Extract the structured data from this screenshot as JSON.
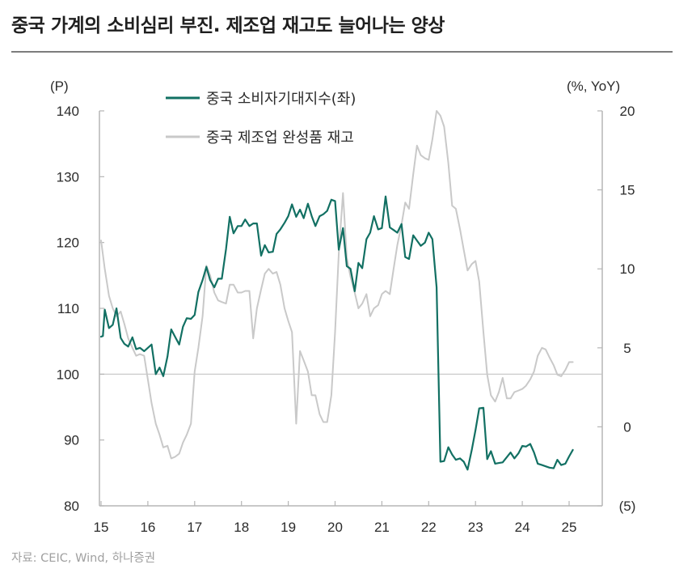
{
  "title": "중국 가계의 소비심리 부진. 제조업 재고도 늘어나는 양상",
  "source": "자료: CEIC, Wind, 하나증권",
  "colors": {
    "consumer": "#127063",
    "inventory": "#c9c9c9",
    "axis": "#b5b5b5",
    "baseline": "#c5c5c5"
  },
  "chart_data": {
    "type": "line",
    "title": "중국 가계의 소비심리 부진. 제조업 재고도 늘어나는 양상",
    "left_unit": "(P)",
    "right_unit": "(%, YoY)",
    "x_range": [
      2015,
      2025.25
    ],
    "y_left_range": [
      80,
      140
    ],
    "y_right_range": [
      -5,
      20
    ],
    "x_ticks": [
      {
        "value": 15,
        "label": "15"
      },
      {
        "value": 16,
        "label": "16"
      },
      {
        "value": 17,
        "label": "17"
      },
      {
        "value": 18,
        "label": "18"
      },
      {
        "value": 19,
        "label": "19"
      },
      {
        "value": 20,
        "label": "20"
      },
      {
        "value": 21,
        "label": "21"
      },
      {
        "value": 22,
        "label": "22"
      },
      {
        "value": 23,
        "label": "23"
      },
      {
        "value": 24,
        "label": "24"
      },
      {
        "value": 25,
        "label": "25"
      }
    ],
    "y_left_ticks": [
      {
        "value": 80,
        "label": "80"
      },
      {
        "value": 90,
        "label": "90"
      },
      {
        "value": 100,
        "label": "100"
      },
      {
        "value": 110,
        "label": "110"
      },
      {
        "value": 120,
        "label": "120"
      },
      {
        "value": 130,
        "label": "130"
      },
      {
        "value": 140,
        "label": "140"
      }
    ],
    "y_right_ticks": [
      {
        "value": -5,
        "label": "(5)"
      },
      {
        "value": 0,
        "label": "0"
      },
      {
        "value": 5,
        "label": "5"
      },
      {
        "value": 10,
        "label": "10"
      },
      {
        "value": 15,
        "label": "15"
      },
      {
        "value": 20,
        "label": "20"
      }
    ],
    "baseline_left": 100,
    "series": [
      {
        "name": "중국 소비자기대지수(좌)",
        "axis": "left",
        "color": "#127063",
        "points": [
          [
            15.0,
            105.7
          ],
          [
            15.04,
            105.8
          ],
          [
            15.08,
            109.8
          ],
          [
            15.17,
            107.0
          ],
          [
            15.25,
            107.5
          ],
          [
            15.33,
            110.0
          ],
          [
            15.42,
            105.5
          ],
          [
            15.5,
            104.6
          ],
          [
            15.58,
            104.2
          ],
          [
            15.67,
            105.6
          ],
          [
            15.75,
            103.8
          ],
          [
            15.83,
            104.0
          ],
          [
            15.92,
            103.5
          ],
          [
            16.0,
            104.0
          ],
          [
            16.08,
            104.5
          ],
          [
            16.17,
            100.0
          ],
          [
            16.25,
            101.0
          ],
          [
            16.33,
            99.7
          ],
          [
            16.42,
            102.7
          ],
          [
            16.5,
            106.8
          ],
          [
            16.58,
            105.7
          ],
          [
            16.67,
            104.5
          ],
          [
            16.75,
            107.2
          ],
          [
            16.83,
            108.5
          ],
          [
            16.92,
            108.4
          ],
          [
            17.0,
            109.0
          ],
          [
            17.08,
            112.5
          ],
          [
            17.17,
            114.3
          ],
          [
            17.25,
            116.3
          ],
          [
            17.33,
            114.3
          ],
          [
            17.42,
            113.2
          ],
          [
            17.5,
            114.5
          ],
          [
            17.58,
            114.5
          ],
          [
            17.67,
            119.0
          ],
          [
            17.75,
            123.9
          ],
          [
            17.83,
            121.4
          ],
          [
            17.92,
            122.5
          ],
          [
            18.0,
            122.5
          ],
          [
            18.08,
            123.5
          ],
          [
            18.17,
            122.5
          ],
          [
            18.25,
            122.9
          ],
          [
            18.33,
            122.9
          ],
          [
            18.42,
            118.0
          ],
          [
            18.5,
            119.6
          ],
          [
            18.58,
            118.5
          ],
          [
            18.67,
            118.6
          ],
          [
            18.75,
            121.3
          ],
          [
            18.83,
            122.0
          ],
          [
            18.92,
            123.0
          ],
          [
            19.0,
            124.0
          ],
          [
            19.08,
            125.8
          ],
          [
            19.17,
            123.9
          ],
          [
            19.25,
            125.0
          ],
          [
            19.33,
            123.7
          ],
          [
            19.42,
            125.9
          ],
          [
            19.5,
            124.0
          ],
          [
            19.58,
            122.5
          ],
          [
            19.67,
            124.0
          ],
          [
            19.75,
            124.3
          ],
          [
            19.83,
            124.8
          ],
          [
            19.92,
            126.5
          ],
          [
            20.0,
            126.3
          ],
          [
            20.08,
            118.9
          ],
          [
            20.17,
            122.2
          ],
          [
            20.25,
            116.4
          ],
          [
            20.33,
            116.0
          ],
          [
            20.42,
            112.6
          ],
          [
            20.5,
            116.9
          ],
          [
            20.58,
            116.1
          ],
          [
            20.67,
            120.5
          ],
          [
            20.75,
            121.5
          ],
          [
            20.83,
            124.0
          ],
          [
            20.92,
            122.0
          ],
          [
            21.0,
            122.2
          ],
          [
            21.08,
            127.0
          ],
          [
            21.17,
            122.3
          ],
          [
            21.25,
            121.9
          ],
          [
            21.33,
            121.5
          ],
          [
            21.42,
            122.8
          ],
          [
            21.5,
            117.8
          ],
          [
            21.58,
            117.5
          ],
          [
            21.67,
            121.1
          ],
          [
            21.75,
            120.3
          ],
          [
            21.83,
            119.5
          ],
          [
            21.92,
            120.0
          ],
          [
            22.0,
            121.5
          ],
          [
            22.08,
            120.5
          ],
          [
            22.17,
            113.2
          ],
          [
            22.25,
            86.7
          ],
          [
            22.33,
            86.8
          ],
          [
            22.42,
            88.9
          ],
          [
            22.5,
            87.8
          ],
          [
            22.58,
            87.0
          ],
          [
            22.67,
            87.2
          ],
          [
            22.75,
            86.7
          ],
          [
            22.83,
            85.5
          ],
          [
            22.92,
            88.5
          ],
          [
            23.0,
            91.5
          ],
          [
            23.08,
            94.8
          ],
          [
            23.17,
            94.9
          ],
          [
            23.25,
            87.1
          ],
          [
            23.33,
            88.3
          ],
          [
            23.42,
            86.4
          ],
          [
            23.5,
            86.5
          ],
          [
            23.58,
            86.6
          ],
          [
            23.67,
            87.4
          ],
          [
            23.75,
            88.1
          ],
          [
            23.83,
            87.2
          ],
          [
            23.92,
            88.0
          ],
          [
            24.0,
            89.1
          ],
          [
            24.08,
            89.0
          ],
          [
            24.17,
            89.4
          ],
          [
            24.25,
            88.1
          ],
          [
            24.33,
            86.4
          ],
          [
            24.42,
            86.2
          ],
          [
            24.5,
            86.0
          ],
          [
            24.58,
            85.8
          ],
          [
            24.67,
            85.7
          ],
          [
            24.75,
            87.0
          ],
          [
            24.83,
            86.2
          ],
          [
            24.92,
            86.4
          ],
          [
            25.0,
            87.5
          ],
          [
            25.08,
            88.5
          ]
        ]
      },
      {
        "name": "중국 제조업 완성품 재고",
        "axis": "right",
        "color": "#c9c9c9",
        "points": [
          [
            15.0,
            11.8
          ],
          [
            15.08,
            10.0
          ],
          [
            15.17,
            8.3
          ],
          [
            15.25,
            7.5
          ],
          [
            15.33,
            7.0
          ],
          [
            15.42,
            7.3
          ],
          [
            15.5,
            6.5
          ],
          [
            15.58,
            5.6
          ],
          [
            15.67,
            5.0
          ],
          [
            15.75,
            4.5
          ],
          [
            15.83,
            4.6
          ],
          [
            15.92,
            4.5
          ],
          [
            16.0,
            3.0
          ],
          [
            16.08,
            1.5
          ],
          [
            16.17,
            0.2
          ],
          [
            16.25,
            -0.5
          ],
          [
            16.33,
            -1.3
          ],
          [
            16.42,
            -1.2
          ],
          [
            16.5,
            -2.0
          ],
          [
            16.58,
            -1.9
          ],
          [
            16.67,
            -1.7
          ],
          [
            16.75,
            -1.0
          ],
          [
            16.83,
            -0.5
          ],
          [
            16.92,
            0.2
          ],
          [
            17.0,
            3.5
          ],
          [
            17.08,
            5.0
          ],
          [
            17.17,
            7.0
          ],
          [
            17.25,
            10.2
          ],
          [
            17.33,
            9.6
          ],
          [
            17.42,
            8.5
          ],
          [
            17.5,
            8.0
          ],
          [
            17.58,
            7.9
          ],
          [
            17.67,
            7.8
          ],
          [
            17.75,
            9.0
          ],
          [
            17.83,
            9.0
          ],
          [
            17.92,
            8.5
          ],
          [
            18.0,
            8.5
          ],
          [
            18.08,
            8.6
          ],
          [
            18.17,
            8.6
          ],
          [
            18.25,
            5.6
          ],
          [
            18.33,
            7.5
          ],
          [
            18.42,
            8.7
          ],
          [
            18.5,
            9.7
          ],
          [
            18.58,
            10.0
          ],
          [
            18.67,
            9.7
          ],
          [
            18.75,
            9.8
          ],
          [
            18.83,
            9.0
          ],
          [
            18.92,
            7.5
          ],
          [
            19.0,
            6.7
          ],
          [
            19.08,
            6.0
          ],
          [
            19.17,
            0.2
          ],
          [
            19.25,
            4.8
          ],
          [
            19.33,
            4.2
          ],
          [
            19.42,
            3.5
          ],
          [
            19.5,
            2.0
          ],
          [
            19.58,
            2.0
          ],
          [
            19.67,
            0.8
          ],
          [
            19.75,
            0.3
          ],
          [
            19.83,
            0.3
          ],
          [
            19.92,
            2.0
          ],
          [
            20.0,
            6.0
          ],
          [
            20.08,
            11.0
          ],
          [
            20.17,
            14.8
          ],
          [
            20.25,
            10.7
          ],
          [
            20.33,
            9.5
          ],
          [
            20.42,
            8.5
          ],
          [
            20.5,
            7.5
          ],
          [
            20.58,
            7.8
          ],
          [
            20.67,
            8.4
          ],
          [
            20.75,
            7.0
          ],
          [
            20.83,
            7.5
          ],
          [
            20.92,
            7.7
          ],
          [
            21.0,
            8.4
          ],
          [
            21.08,
            8.6
          ],
          [
            21.17,
            8.4
          ],
          [
            21.25,
            10.0
          ],
          [
            21.33,
            11.5
          ],
          [
            21.42,
            12.8
          ],
          [
            21.5,
            14.2
          ],
          [
            21.58,
            13.8
          ],
          [
            21.67,
            16.0
          ],
          [
            21.75,
            17.8
          ],
          [
            21.83,
            17.2
          ],
          [
            21.92,
            17.0
          ],
          [
            22.0,
            16.9
          ],
          [
            22.08,
            18.2
          ],
          [
            22.17,
            20.0
          ],
          [
            22.25,
            19.7
          ],
          [
            22.33,
            19.0
          ],
          [
            22.42,
            16.7
          ],
          [
            22.5,
            14.0
          ],
          [
            22.58,
            13.8
          ],
          [
            22.67,
            12.5
          ],
          [
            22.75,
            11.2
          ],
          [
            22.83,
            9.9
          ],
          [
            22.92,
            10.3
          ],
          [
            23.0,
            10.5
          ],
          [
            23.08,
            9.2
          ],
          [
            23.17,
            6.0
          ],
          [
            23.25,
            3.3
          ],
          [
            23.33,
            2.0
          ],
          [
            23.42,
            1.6
          ],
          [
            23.5,
            2.2
          ],
          [
            23.58,
            3.1
          ],
          [
            23.67,
            1.8
          ],
          [
            23.75,
            1.8
          ],
          [
            23.83,
            2.2
          ],
          [
            23.92,
            2.3
          ],
          [
            24.0,
            2.4
          ],
          [
            24.08,
            2.6
          ],
          [
            24.17,
            3.0
          ],
          [
            24.25,
            3.5
          ],
          [
            24.33,
            4.5
          ],
          [
            24.42,
            5.0
          ],
          [
            24.5,
            4.9
          ],
          [
            24.58,
            4.4
          ],
          [
            24.67,
            3.9
          ],
          [
            24.75,
            3.3
          ],
          [
            24.83,
            3.2
          ],
          [
            24.92,
            3.6
          ],
          [
            25.0,
            4.1
          ],
          [
            25.08,
            4.1
          ]
        ]
      }
    ]
  }
}
